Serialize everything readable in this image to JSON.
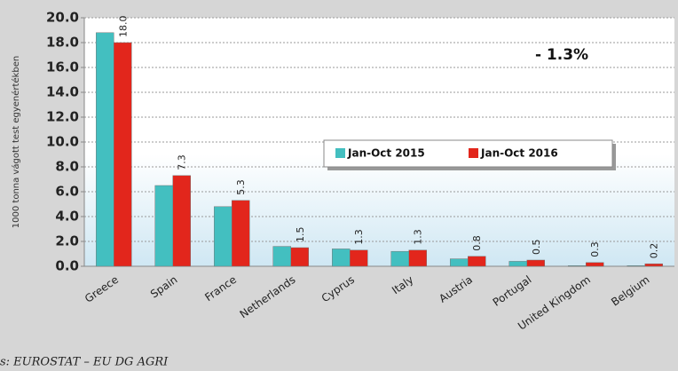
{
  "chart_data": {
    "type": "bar",
    "y_axis_label": "1000 tonna vágott test egyenértékben",
    "annotation": "- 1.3%",
    "source": "s: EUROSTAT – EU DG AGRI",
    "categories": [
      "Greece",
      "Spain",
      "France",
      "Netherlands",
      "Cyprus",
      "Italy",
      "Austria",
      "Portugal",
      "United Kingdom",
      "Belgium"
    ],
    "series": [
      {
        "name": "Jan-Oct 2015",
        "color": "#43bfc0",
        "values": [
          18.8,
          6.5,
          4.8,
          1.6,
          1.4,
          1.2,
          0.6,
          0.4,
          0.05,
          0.05
        ]
      },
      {
        "name": "Jan-Oct 2016",
        "color": "#e2261c",
        "values": [
          18.0,
          7.3,
          5.3,
          1.5,
          1.3,
          1.3,
          0.8,
          0.5,
          0.3,
          0.2
        ],
        "value_labels": [
          "18.0",
          "7.3",
          "5.3",
          "1.5",
          "1.3",
          "1.3",
          "0.8",
          "0.5",
          "0.3",
          "0.2"
        ]
      }
    ],
    "ylim": [
      0,
      20
    ],
    "yticks": [
      {
        "value": 0,
        "label": "0.0"
      },
      {
        "value": 2,
        "label": "2.0"
      },
      {
        "value": 4,
        "label": "4.0"
      },
      {
        "value": 6,
        "label": "6.0"
      },
      {
        "value": 8,
        "label": "8.0"
      },
      {
        "value": 10,
        "label": "10.0"
      },
      {
        "value": 12,
        "label": "12.0"
      },
      {
        "value": 14,
        "label": "14.0"
      },
      {
        "value": 16,
        "label": "16.0"
      },
      {
        "value": 18,
        "label": "18.0"
      },
      {
        "value": 20,
        "label": "20.0"
      }
    ],
    "grid": true
  }
}
